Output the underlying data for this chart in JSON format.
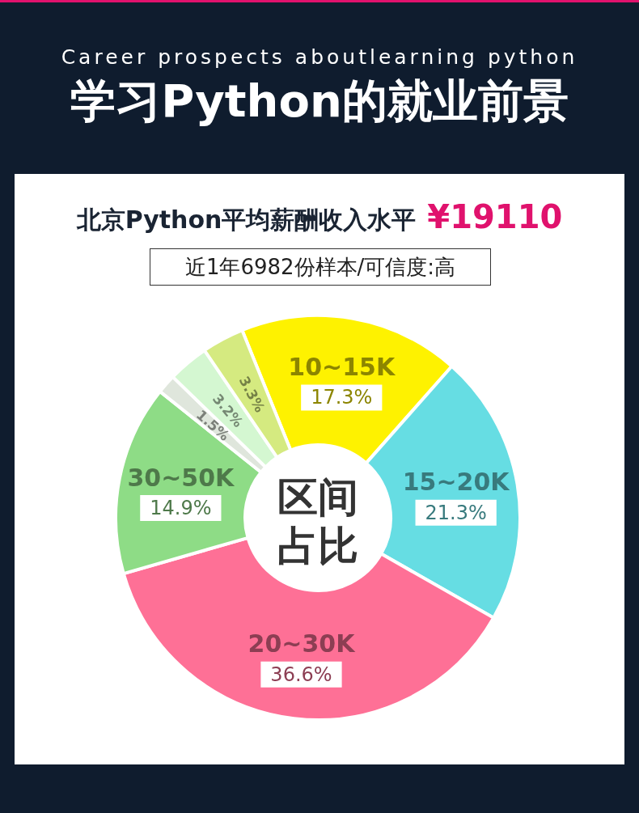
{
  "chart_data": {
    "type": "donut",
    "title": "学习Python的就业前景",
    "subtitle": "Career prospects aboutlearning python",
    "annotations": [
      "北京Python平均薪酬收入水平",
      "¥19110",
      "近1年6982份样本/可信度:高",
      "区间占比"
    ],
    "categories": [
      "10~15K",
      "15~20K",
      "20~30K",
      "30~50K",
      null,
      null,
      null
    ],
    "values": [
      17.3,
      21.3,
      36.6,
      14.9,
      1.5,
      3.2,
      3.3
    ],
    "value_labels": [
      "17.3%",
      "21.3%",
      "36.6%",
      "14.9%",
      "1.5%",
      "3.2%",
      "3.3%"
    ],
    "colors": [
      "#fef200",
      "#66dde3",
      "#fe7096",
      "#8edc86",
      "#dfe6dc",
      "#d4f7d1",
      "#d5ea80"
    ],
    "legend": false
  }
}
